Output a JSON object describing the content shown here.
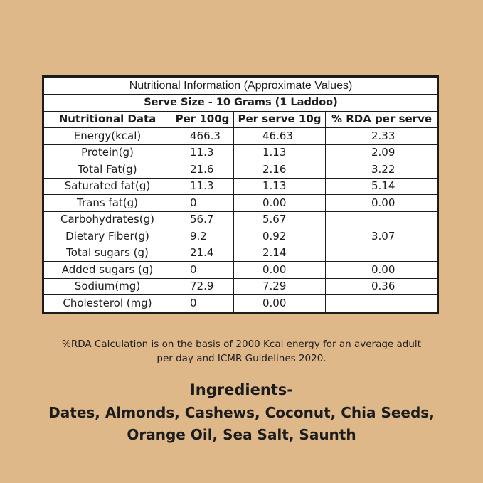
{
  "table": {
    "title": "Nutritional Information (Approximate Values)",
    "serve_size": "Serve Size - 10 Grams (1 Laddoo)",
    "headers": [
      "Nutritional Data",
      "Per 100g",
      "Per serve 10g",
      "% RDA per serve"
    ],
    "rows": [
      [
        "Energy(kcal)",
        "466.3",
        "46.63",
        "2.33"
      ],
      [
        "Protein(g)",
        "11.3",
        "1.13",
        "2.09"
      ],
      [
        "Total Fat(g)",
        "21.6",
        "2.16",
        "3.22"
      ],
      [
        "Saturated fat(g)",
        "11.3",
        "1.13",
        "5.14"
      ],
      [
        "Trans fat(g)",
        "0",
        "0.00",
        "0.00"
      ],
      [
        "Carbohydrates(g)",
        "56.7",
        "5.67",
        ""
      ],
      [
        "Dietary Fiber(g)",
        "9.2",
        "0.92",
        "3.07"
      ],
      [
        "Total sugars (g)",
        "21.4",
        "2.14",
        ""
      ],
      [
        "Added sugars (g)",
        "0",
        "0.00",
        "0.00"
      ],
      [
        "Sodium(mg)",
        "72.9",
        "7.29",
        "0.36"
      ],
      [
        "Cholesterol (mg)",
        "0",
        "0.00",
        ""
      ]
    ]
  },
  "note": {
    "line1": "%RDA Calculation is on the basis of 2000 Kcal energy for an average adult",
    "line2": "per day and ICMR Guidelines 2020."
  },
  "ingredients": {
    "title": "Ingredients-",
    "line1": "Dates, Almonds, Cashews, Coconut, Chia Seeds,",
    "line2": "Orange Oil, Sea Salt, Saunth"
  },
  "colors": {
    "background": "#dfb889",
    "table_bg": "#ffffff",
    "text": "#1c1c1c"
  }
}
